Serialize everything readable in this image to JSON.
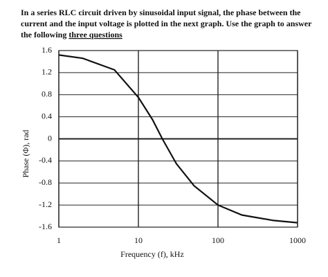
{
  "intro": [
    "In a series RLC circuit driven by sinusoidal input signal, the phase between the",
    "current and the input voltage is plotted in the next graph. Use the graph to answer",
    "the following"
  ],
  "intro_underlined": "three questions",
  "chart_data": {
    "type": "line",
    "xlabel": "Frequency (f), kHz",
    "ylabel": "Phase (Φ), rad",
    "x": [
      1,
      2,
      5,
      10,
      15,
      20,
      30,
      50,
      100,
      200,
      500,
      1000
    ],
    "series": [
      {
        "color": "#111111",
        "values": [
          1.52,
          1.46,
          1.25,
          0.75,
          0.35,
          0,
          -0.45,
          -0.85,
          -1.2,
          -1.38,
          -1.48,
          -1.52
        ]
      }
    ],
    "xlim": [
      1,
      1000
    ],
    "xticks": [
      1,
      10,
      100,
      1000
    ],
    "xscale": "log",
    "ylim": [
      -1.6,
      1.6
    ],
    "yticks": [
      1.6,
      1.2,
      0.8,
      0.4,
      0,
      -0.4,
      -0.8,
      -1.2,
      -1.6
    ],
    "grid": true
  }
}
